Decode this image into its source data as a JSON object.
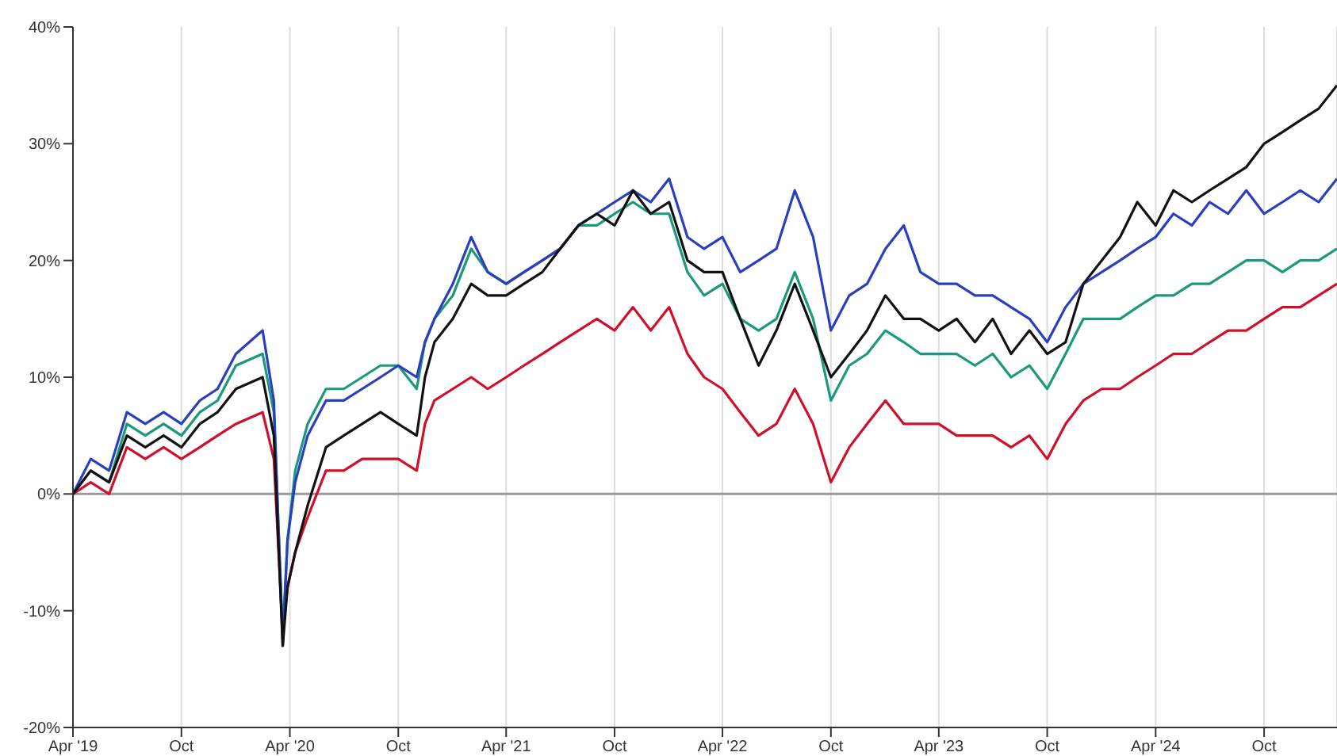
{
  "chart_data": {
    "type": "line",
    "x": [
      "2019-04-01",
      "2019-05-01",
      "2019-06-01",
      "2019-07-01",
      "2019-08-01",
      "2019-09-01",
      "2019-10-01",
      "2019-11-01",
      "2019-12-01",
      "2020-01-01",
      "2020-02-15",
      "2020-03-05",
      "2020-03-20",
      "2020-03-28",
      "2020-04-10",
      "2020-05-01",
      "2020-06-01",
      "2020-07-01",
      "2020-08-01",
      "2020-09-01",
      "2020-10-01",
      "2020-11-01",
      "2020-11-15",
      "2020-12-01",
      "2021-01-01",
      "2021-02-01",
      "2021-03-01",
      "2021-04-01",
      "2021-05-01",
      "2021-06-01",
      "2021-07-01",
      "2021-08-01",
      "2021-09-01",
      "2021-10-01",
      "2021-11-01",
      "2021-12-01",
      "2022-01-01",
      "2022-02-01",
      "2022-03-01",
      "2022-04-01",
      "2022-05-01",
      "2022-06-01",
      "2022-07-01",
      "2022-08-01",
      "2022-09-01",
      "2022-10-01",
      "2022-11-01",
      "2022-12-01",
      "2023-01-01",
      "2023-02-01",
      "2023-03-01",
      "2023-04-01",
      "2023-05-01",
      "2023-06-01",
      "2023-07-01",
      "2023-08-01",
      "2023-09-01",
      "2023-10-01",
      "2023-11-01",
      "2023-12-01",
      "2024-01-01",
      "2024-02-01",
      "2024-03-01",
      "2024-04-01",
      "2024-05-01",
      "2024-06-01",
      "2024-07-01",
      "2024-08-01",
      "2024-09-01",
      "2024-10-01",
      "2024-11-01",
      "2024-12-01",
      "2025-01-01",
      "2025-02-01"
    ],
    "series": [
      {
        "color": "#d0102a",
        "values": [
          0,
          1,
          0,
          4,
          3,
          4,
          3,
          4,
          5,
          6,
          7,
          3,
          -12,
          -8,
          -5,
          -2,
          2,
          2,
          3,
          3,
          3,
          2,
          6,
          8,
          9,
          10,
          9,
          10,
          11,
          12,
          13,
          14,
          15,
          14,
          16,
          14,
          16,
          12,
          10,
          9,
          7,
          5,
          6,
          9,
          6,
          1,
          4,
          6,
          8,
          6,
          6,
          6,
          5,
          5,
          5,
          4,
          5,
          3,
          6,
          8,
          9,
          9,
          10,
          11,
          12,
          12,
          13,
          14,
          14,
          15,
          16,
          16,
          17,
          18
        ]
      },
      {
        "color": "#1a9a7a",
        "values": [
          0,
          2,
          1,
          6,
          5,
          6,
          5,
          7,
          8,
          11,
          12,
          7,
          -12,
          -4,
          2,
          6,
          9,
          9,
          10,
          11,
          11,
          9,
          13,
          15,
          17,
          21,
          19,
          18,
          19,
          20,
          21,
          23,
          23,
          24,
          25,
          24,
          24,
          19,
          17,
          18,
          15,
          14,
          15,
          19,
          15,
          8,
          11,
          12,
          14,
          13,
          12,
          12,
          12,
          11,
          12,
          10,
          11,
          9,
          12,
          15,
          15,
          15,
          16,
          17,
          17,
          18,
          18,
          19,
          20,
          20,
          19,
          20,
          20,
          21
        ]
      },
      {
        "color": "#2a3fbf",
        "values": [
          0,
          3,
          2,
          7,
          6,
          7,
          6,
          8,
          9,
          12,
          14,
          8,
          -13,
          -4,
          1,
          5,
          8,
          8,
          9,
          10,
          11,
          10,
          13,
          15,
          18,
          22,
          19,
          18,
          19,
          20,
          21,
          23,
          24,
          25,
          26,
          25,
          27,
          22,
          21,
          22,
          19,
          20,
          21,
          26,
          22,
          14,
          17,
          18,
          21,
          23,
          19,
          18,
          18,
          17,
          17,
          16,
          15,
          13,
          16,
          18,
          19,
          20,
          21,
          22,
          24,
          23,
          25,
          24,
          26,
          24,
          25,
          26,
          25,
          27
        ]
      },
      {
        "color": "#111111",
        "values": [
          0,
          2,
          1,
          5,
          4,
          5,
          4,
          6,
          7,
          9,
          10,
          5,
          -13,
          -8,
          -5,
          -1,
          4,
          5,
          6,
          7,
          6,
          5,
          10,
          13,
          15,
          18,
          17,
          17,
          18,
          19,
          21,
          23,
          24,
          23,
          26,
          24,
          25,
          20,
          19,
          19,
          15,
          11,
          14,
          18,
          14,
          10,
          12,
          14,
          17,
          15,
          15,
          14,
          15,
          13,
          15,
          12,
          14,
          12,
          13,
          18,
          20,
          22,
          25,
          23,
          26,
          25,
          26,
          27,
          28,
          30,
          31,
          32,
          33,
          35
        ]
      }
    ],
    "xlim": [
      "2019-04-01",
      "2025-02-01"
    ],
    "xticks": [
      {
        "value": "2019-04-01",
        "label": "Apr '19"
      },
      {
        "value": "2019-10-01",
        "label": "Oct"
      },
      {
        "value": "2020-04-01",
        "label": "Apr '20"
      },
      {
        "value": "2020-10-01",
        "label": "Oct"
      },
      {
        "value": "2021-04-01",
        "label": "Apr '21"
      },
      {
        "value": "2021-10-01",
        "label": "Oct"
      },
      {
        "value": "2022-04-01",
        "label": "Apr '22"
      },
      {
        "value": "2022-10-01",
        "label": "Oct"
      },
      {
        "value": "2023-04-01",
        "label": "Apr '23"
      },
      {
        "value": "2023-10-01",
        "label": "Oct"
      },
      {
        "value": "2024-04-01",
        "label": "Apr '24"
      },
      {
        "value": "2024-10-01",
        "label": "Oct"
      }
    ],
    "ylim": [
      -20,
      40
    ],
    "yticks": [
      {
        "value": -20,
        "label": "-20%"
      },
      {
        "value": -10,
        "label": "-10%"
      },
      {
        "value": 0,
        "label": "0%"
      },
      {
        "value": 10,
        "label": "10%"
      },
      {
        "value": 20,
        "label": "20%"
      },
      {
        "value": 30,
        "label": "30%"
      },
      {
        "value": 40,
        "label": "40%"
      }
    ],
    "ref_lines": [
      {
        "axis": "y",
        "value": 0,
        "color": "#999999"
      }
    ],
    "grid": "x",
    "legend": false,
    "marker": "none",
    "line_style": "solid"
  }
}
